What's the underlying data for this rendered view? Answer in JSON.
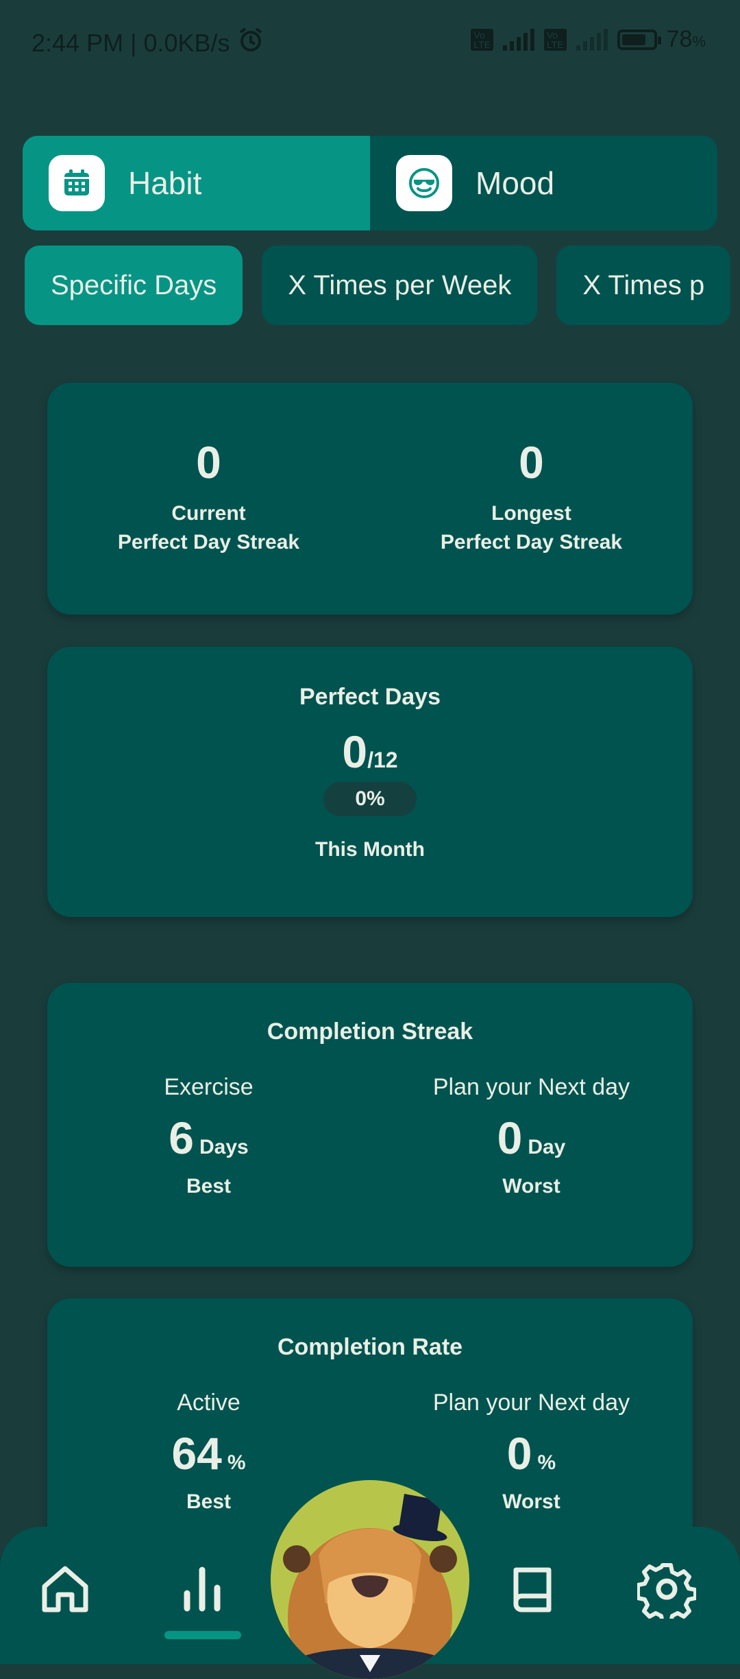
{
  "status": {
    "time": "2:44 PM",
    "speed": "0.0KB/s",
    "battery": "78",
    "battery_unit": "%",
    "battery_level": 0.78
  },
  "tabs": [
    {
      "label": "Habit",
      "icon": "calendar-icon",
      "active": true
    },
    {
      "label": "Mood",
      "icon": "smiley-sunglasses-icon",
      "active": false
    }
  ],
  "chips": [
    "Specific Days",
    "X Times per Week",
    "X Times p"
  ],
  "streak_card": {
    "current_value": "0",
    "current_label_1": "Current",
    "current_label_2": "Perfect Day Streak",
    "longest_value": "0",
    "longest_label_1": "Longest",
    "longest_label_2": "Perfect Day Streak"
  },
  "perfect_days": {
    "title": "Perfect Days",
    "value": "0",
    "total": "/12",
    "percent": "0%",
    "period": "This Month"
  },
  "completion_streak": {
    "title": "Completion Streak",
    "left_name": "Exercise",
    "left_value": "6",
    "left_unit": "Days",
    "left_tag": "Best",
    "right_name": "Plan your Next day",
    "right_value": "0",
    "right_unit": "Day",
    "right_tag": "Worst"
  },
  "completion_rate": {
    "title": "Completion Rate",
    "left_name": "Active",
    "left_value": "64",
    "left_unit": "%",
    "left_tag": "Best",
    "right_name": "Plan your Next day",
    "right_value": "0",
    "right_unit": "%",
    "right_tag": "Worst"
  },
  "nav": [
    "home-icon",
    "stats-icon",
    "mascot-beaver",
    "book-icon",
    "settings-gear-icon"
  ],
  "colors": {
    "background": "#1a3d3c",
    "card": "#00534f",
    "accent": "#069485",
    "text": "#e9efe6"
  }
}
